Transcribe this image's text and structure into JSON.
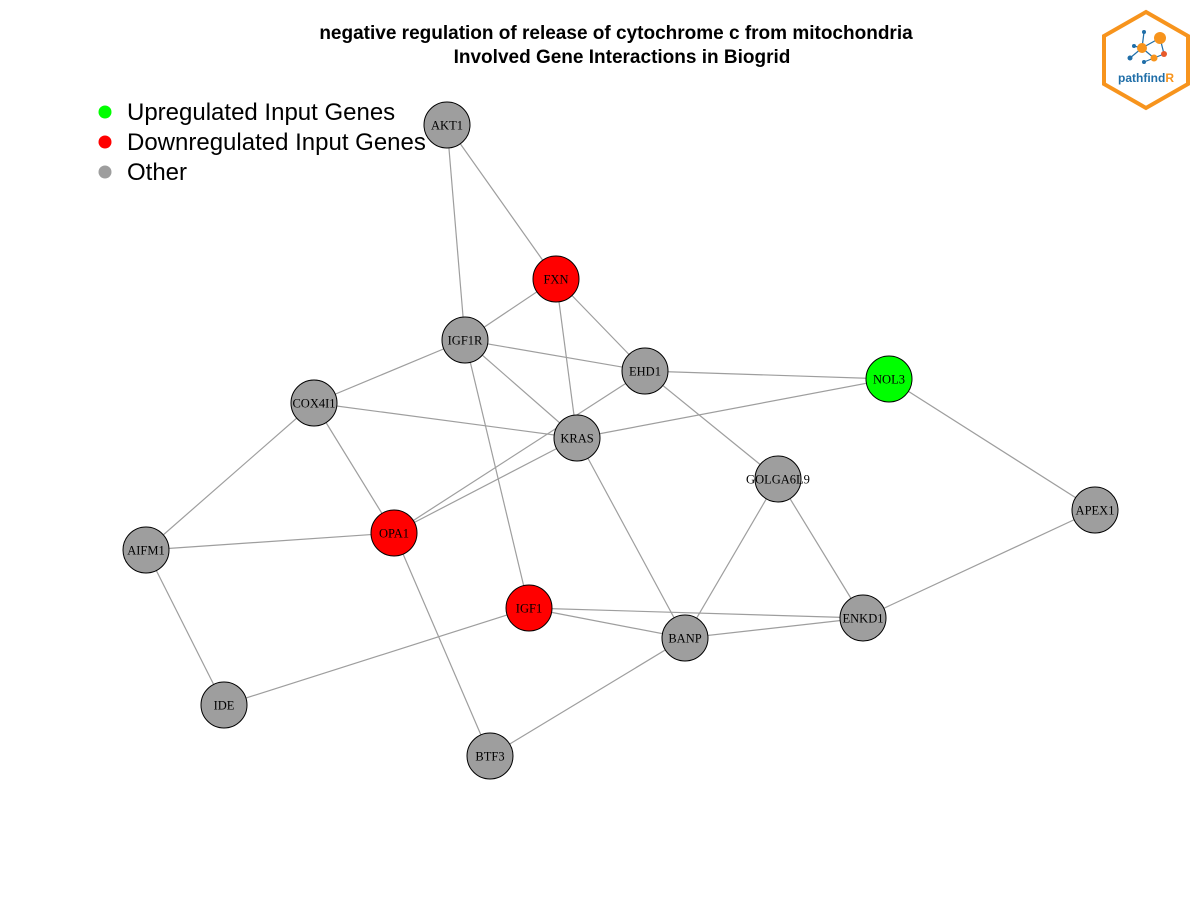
{
  "title": {
    "line1": "negative regulation of release of cytochrome c from mitochondria",
    "line2": "Involved Gene Interactions in Biogrid"
  },
  "legend": [
    {
      "label": "Upregulated Input Genes",
      "color": "#00ff00"
    },
    {
      "label": "Downregulated Input Genes",
      "color": "#ff0000"
    },
    {
      "label": "Other",
      "color": "#9e9e9e"
    }
  ],
  "logo": {
    "text_main": "pathfind",
    "text_accent": "R",
    "border_color": "#f7941d",
    "text_color": "#1f6ea8",
    "accent_color": "#f7941d"
  },
  "colors": {
    "up": "#00ff00",
    "down": "#ff0000",
    "other": "#9e9e9e",
    "edge": "#9e9e9e"
  },
  "nodes": [
    {
      "id": "AKT1",
      "type": "other"
    },
    {
      "id": "FXN",
      "type": "down"
    },
    {
      "id": "IGF1R",
      "type": "other"
    },
    {
      "id": "EHD1",
      "type": "other"
    },
    {
      "id": "NOL3",
      "type": "up"
    },
    {
      "id": "COX4I1",
      "type": "other"
    },
    {
      "id": "KRAS",
      "type": "other"
    },
    {
      "id": "GOLGA6L9",
      "type": "other"
    },
    {
      "id": "APEX1",
      "type": "other"
    },
    {
      "id": "AIFM1",
      "type": "other"
    },
    {
      "id": "OPA1",
      "type": "down"
    },
    {
      "id": "IGF1",
      "type": "down"
    },
    {
      "id": "ENKD1",
      "type": "other"
    },
    {
      "id": "BANP",
      "type": "other"
    },
    {
      "id": "IDE",
      "type": "other"
    },
    {
      "id": "BTF3",
      "type": "other"
    }
  ],
  "edges": [
    [
      "AKT1",
      "FXN"
    ],
    [
      "AKT1",
      "IGF1R"
    ],
    [
      "FXN",
      "IGF1R"
    ],
    [
      "FXN",
      "EHD1"
    ],
    [
      "FXN",
      "KRAS"
    ],
    [
      "IGF1R",
      "EHD1"
    ],
    [
      "IGF1R",
      "KRAS"
    ],
    [
      "IGF1R",
      "COX4I1"
    ],
    [
      "IGF1R",
      "IGF1"
    ],
    [
      "EHD1",
      "NOL3"
    ],
    [
      "EHD1",
      "GOLGA6L9"
    ],
    [
      "EHD1",
      "OPA1"
    ],
    [
      "NOL3",
      "KRAS"
    ],
    [
      "NOL3",
      "APEX1"
    ],
    [
      "COX4I1",
      "KRAS"
    ],
    [
      "COX4I1",
      "OPA1"
    ],
    [
      "COX4I1",
      "AIFM1"
    ],
    [
      "KRAS",
      "OPA1"
    ],
    [
      "KRAS",
      "BANP"
    ],
    [
      "GOLGA6L9",
      "BANP"
    ],
    [
      "GOLGA6L9",
      "ENKD1"
    ],
    [
      "APEX1",
      "ENKD1"
    ],
    [
      "AIFM1",
      "OPA1"
    ],
    [
      "AIFM1",
      "IDE"
    ],
    [
      "OPA1",
      "BTF3"
    ],
    [
      "IGF1",
      "BANP"
    ],
    [
      "IGF1",
      "ENKD1"
    ],
    [
      "IGF1",
      "IDE"
    ],
    [
      "BANP",
      "ENKD1"
    ],
    [
      "BANP",
      "BTF3"
    ]
  ]
}
